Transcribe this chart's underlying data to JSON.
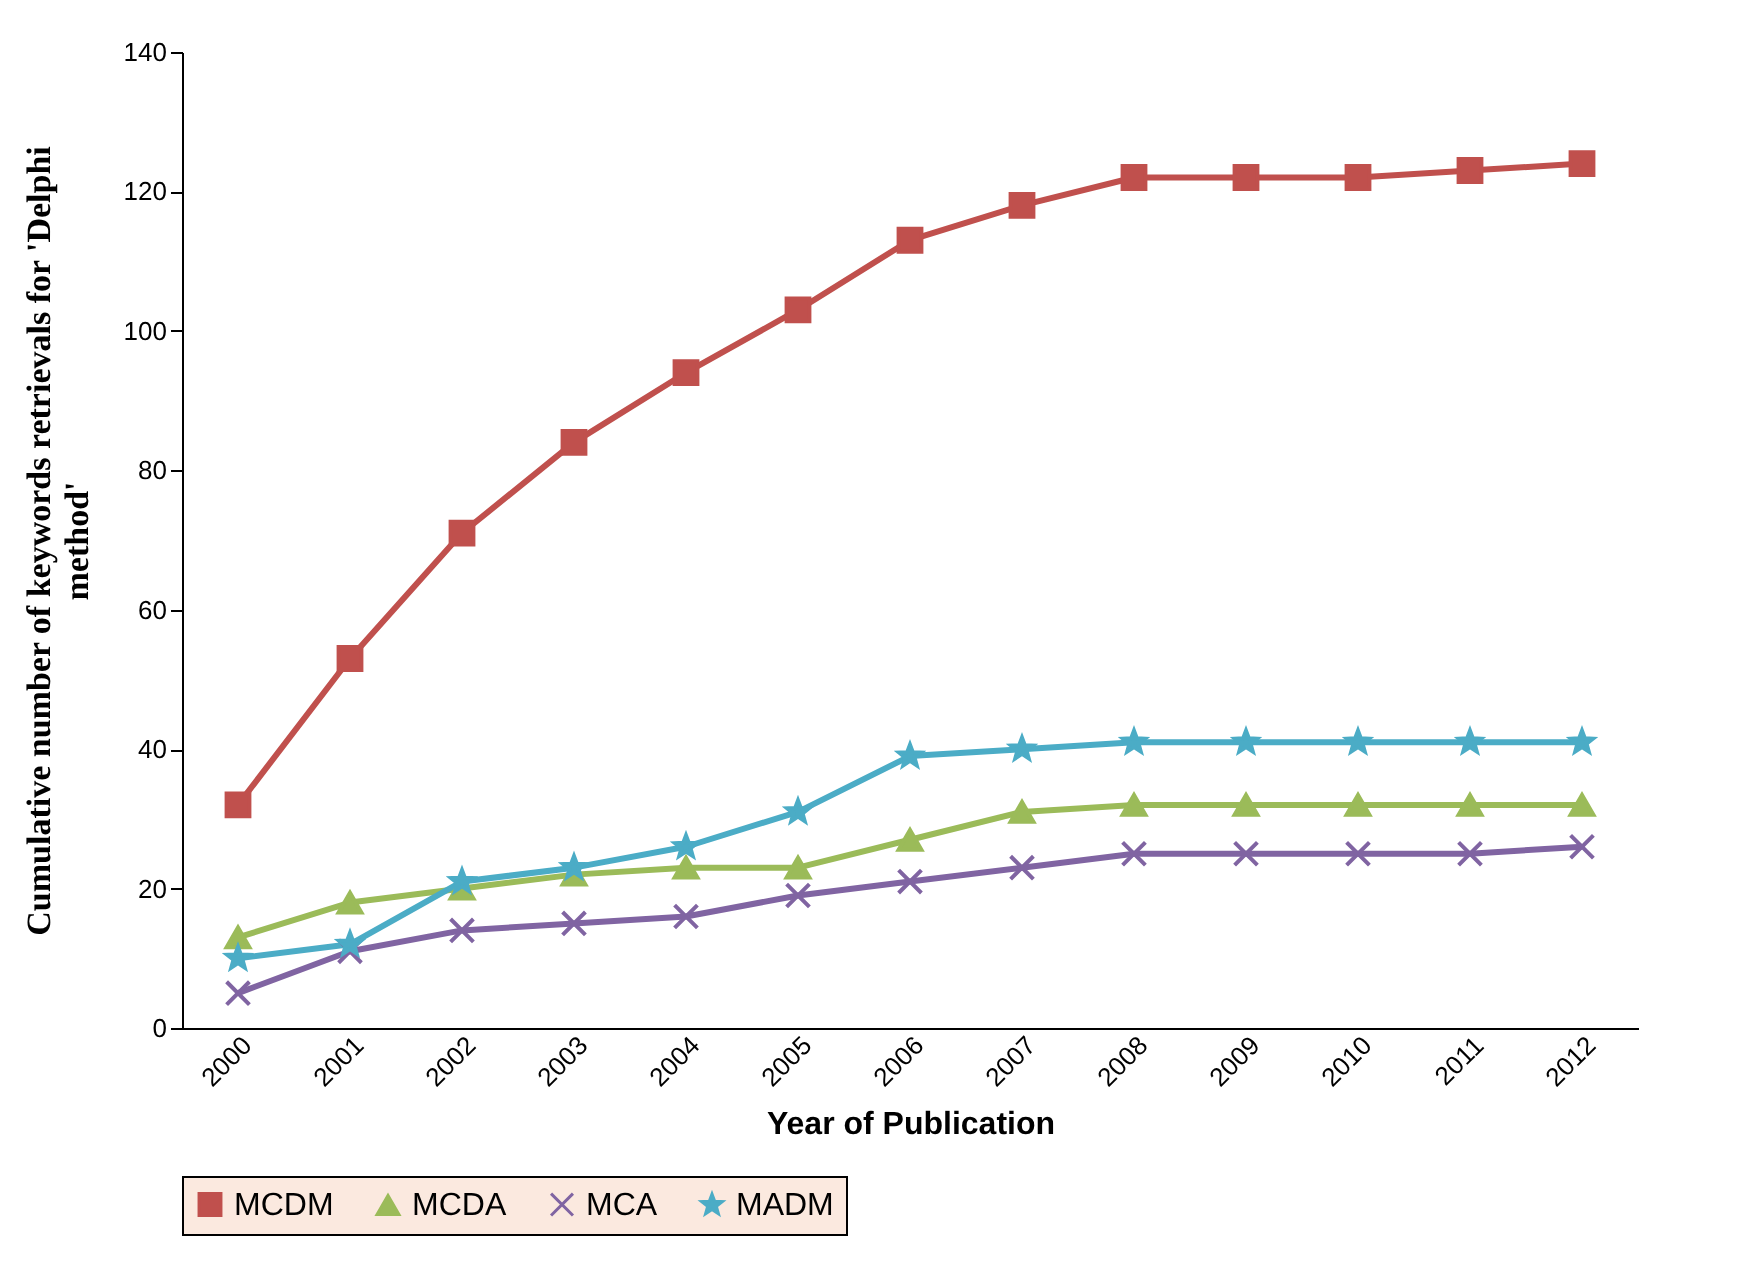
{
  "chart_data": {
    "type": "line",
    "xlabel": "Year of Publication",
    "ylabel": "Cumulative number of keywords retrievals for 'Delphi method'",
    "categories": [
      "2000",
      "2001",
      "2002",
      "2003",
      "2004",
      "2005",
      "2006",
      "2007",
      "2008",
      "2009",
      "2010",
      "2011",
      "2012"
    ],
    "ylim": [
      0,
      140
    ],
    "yticks": [
      0,
      20,
      40,
      60,
      80,
      100,
      120,
      140
    ],
    "grid": false,
    "legend": "bottom",
    "series": [
      {
        "name": "MCDM",
        "color": "#c0504d",
        "marker": "square",
        "values": [
          32,
          53,
          71,
          84,
          94,
          103,
          113,
          118,
          122,
          122,
          122,
          123,
          124
        ]
      },
      {
        "name": "MCDA",
        "color": "#9bbb59",
        "marker": "triangle",
        "values": [
          13,
          18,
          20,
          22,
          23,
          23,
          27,
          31,
          32,
          32,
          32,
          32,
          32
        ]
      },
      {
        "name": "MCA",
        "color": "#8064a2",
        "marker": "cross",
        "values": [
          5,
          11,
          14,
          15,
          16,
          19,
          21,
          23,
          25,
          25,
          25,
          25,
          26
        ]
      },
      {
        "name": "MADM",
        "color": "#4bacc6",
        "marker": "star",
        "values": [
          10,
          12,
          21,
          23,
          26,
          31,
          39,
          40,
          41,
          41,
          41,
          41,
          41
        ]
      }
    ]
  }
}
